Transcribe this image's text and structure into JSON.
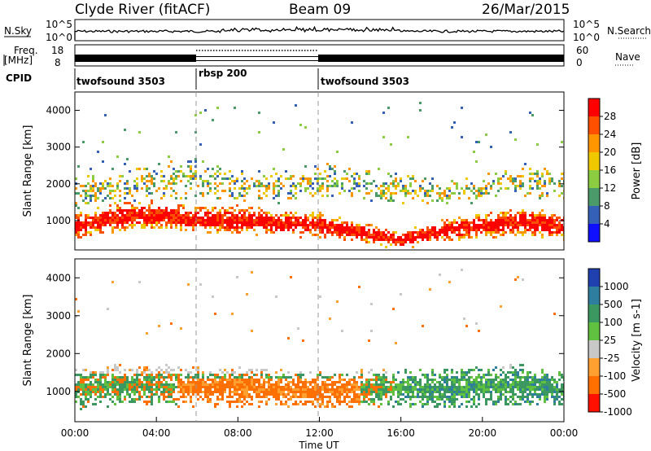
{
  "header": {
    "station": "Clyde River (fitACF)",
    "beam": "Beam 09",
    "date": "26/Mar/2015"
  },
  "nsky_panel": {
    "left_label": "N.Sky",
    "right_label": "N.Search",
    "tick_high": "10^5",
    "tick_low": "10^0"
  },
  "freq_panel": {
    "left_label_line1": "Freq.",
    "left_label_line2": "[MHz]",
    "right_label": "Nave",
    "left_ticks": [
      "18",
      "8"
    ],
    "right_ticks": [
      "60",
      "0"
    ]
  },
  "cpid": {
    "label": "CPID",
    "segments": [
      {
        "name": "twofsound 3503",
        "start_hour": 0,
        "end_hour": 6
      },
      {
        "name": "rbsp 200",
        "start_hour": 6,
        "end_hour": 12
      },
      {
        "name": "twofsound 3503",
        "start_hour": 12,
        "end_hour": 24
      }
    ]
  },
  "power_panel": {
    "ylabel": "Slant Range [km]",
    "colorbar_label": "Power [dB]",
    "colorbar_ticks": [
      "28",
      "24",
      "20",
      "16",
      "12",
      "8",
      "4"
    ],
    "colorbar_colors": [
      "#ff0000",
      "#ff5000",
      "#ff9600",
      "#f0c800",
      "#8ccc40",
      "#4a9a6a",
      "#3460b8",
      "#1010ff"
    ]
  },
  "velocity_panel": {
    "ylabel": "Slant Range [km]",
    "colorbar_label": "Velocity [m s-1]",
    "colorbar_ticks": [
      "1000",
      "500",
      "100",
      "25",
      "-25",
      "-100",
      "-500",
      "-1000"
    ],
    "colorbar_colors": [
      "#2040b0",
      "#2e7ea0",
      "#3a9860",
      "#60c040",
      "#c8c8c8",
      "#ffa030",
      "#ff7000",
      "#ff1000"
    ]
  },
  "xaxis": {
    "label": "Time UT",
    "ticks": [
      "00:00",
      "04:00",
      "08:00",
      "12:00",
      "16:00",
      "20:00",
      "00:00"
    ]
  },
  "chart_data": {
    "type": "heatmap",
    "title": "Clyde River (fitACF)  Beam 09  26/Mar/2015",
    "xlabel": "Time UT",
    "ylabel": "Slant Range [km]",
    "xlim_hours": [
      0,
      24
    ],
    "ylim_km": [
      200,
      4500
    ],
    "y_ticks": [
      1000,
      2000,
      3000,
      4000
    ],
    "power_main_band": {
      "time_hours": [
        0,
        2,
        4,
        6,
        8,
        10,
        12,
        14,
        16,
        18,
        20,
        22,
        24
      ],
      "center_km": [
        900,
        1100,
        1200,
        1050,
        1050,
        950,
        900,
        700,
        500,
        750,
        900,
        1000,
        850
      ],
      "half_width_km": [
        350,
        400,
        400,
        350,
        400,
        350,
        350,
        300,
        250,
        300,
        350,
        400,
        350
      ]
    },
    "power_upper_band": {
      "time_hours": [
        0,
        2,
        4,
        6,
        8,
        10,
        12,
        14,
        16,
        18,
        20,
        22,
        24
      ],
      "center_km": [
        1800,
        1900,
        2100,
        2200,
        2000,
        1900,
        2100,
        2000,
        1900,
        1800,
        1900,
        2100,
        2000
      ],
      "half_width_km": [
        450,
        400,
        500,
        550,
        450,
        400,
        500,
        450,
        400,
        350,
        400,
        450,
        400
      ]
    },
    "velocity_main_band": {
      "time_hours": [
        0,
        2,
        4,
        6,
        8,
        10,
        12,
        14,
        15.5,
        16,
        18,
        20,
        22,
        24
      ],
      "center_km": [
        1100,
        1200,
        1200,
        1150,
        1150,
        1100,
        1050,
        1100,
        1100,
        1100,
        1100,
        1150,
        1200,
        1100
      ],
      "half_width_km": [
        550,
        550,
        550,
        550,
        550,
        500,
        500,
        500,
        500,
        500,
        500,
        550,
        550,
        500
      ]
    }
  }
}
